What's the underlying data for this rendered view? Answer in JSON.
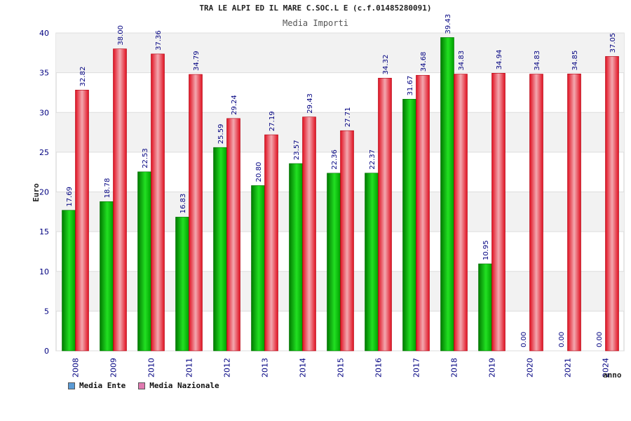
{
  "title": "TRA LE ALPI ED IL MARE C.SOC.L E (c.f.01485280091)",
  "subtitle": "Media Importi",
  "legend": {
    "ente_label": "Media Ente",
    "nazionale_label": "Media Nazionale",
    "ente_color": "#5b9bd5",
    "nazionale_color": "#e07ab0"
  },
  "chart_data": {
    "type": "bar",
    "title": "TRA LE ALPI ED IL MARE C.SOC.L E (c.f.01485280091)",
    "subtitle": "Media Importi",
    "xlabel": "anno",
    "ylabel": "Euro",
    "ylim": [
      0,
      40
    ],
    "yticks": [
      0,
      5,
      10,
      15,
      20,
      25,
      30,
      35,
      40
    ],
    "categories": [
      "2008",
      "2009",
      "2010",
      "2011",
      "2012",
      "2013",
      "2014",
      "2015",
      "2016",
      "2017",
      "2018",
      "2019",
      "2020",
      "2021",
      "2024"
    ],
    "series": [
      {
        "name": "Media Ente",
        "color": "#00b000",
        "values": [
          17.69,
          18.78,
          22.53,
          16.83,
          25.59,
          20.8,
          23.57,
          22.36,
          22.37,
          31.67,
          39.43,
          10.95,
          0.0,
          0.0,
          0.0
        ],
        "labels": [
          "17.69",
          "18.78",
          "22.53",
          "16.83",
          "25.59",
          "20.80",
          "23.57",
          "22.36",
          "22.37",
          "31.67",
          "39.43",
          "10.95",
          "0.00",
          "0.00",
          "0.00"
        ]
      },
      {
        "name": "Media Nazionale",
        "color": "#e8202c",
        "values": [
          32.82,
          38.0,
          37.36,
          34.79,
          29.24,
          27.19,
          29.43,
          27.71,
          34.32,
          34.68,
          34.83,
          34.94,
          34.83,
          34.85,
          37.05
        ],
        "labels": [
          "32.82",
          "38.00",
          "37.36",
          "34.79",
          "29.24",
          "27.19",
          "29.43",
          "27.71",
          "34.32",
          "34.68",
          "34.83",
          "34.94",
          "34.83",
          "34.85",
          "37.05"
        ]
      }
    ],
    "grid": true,
    "legend_position": "bottom-left"
  }
}
